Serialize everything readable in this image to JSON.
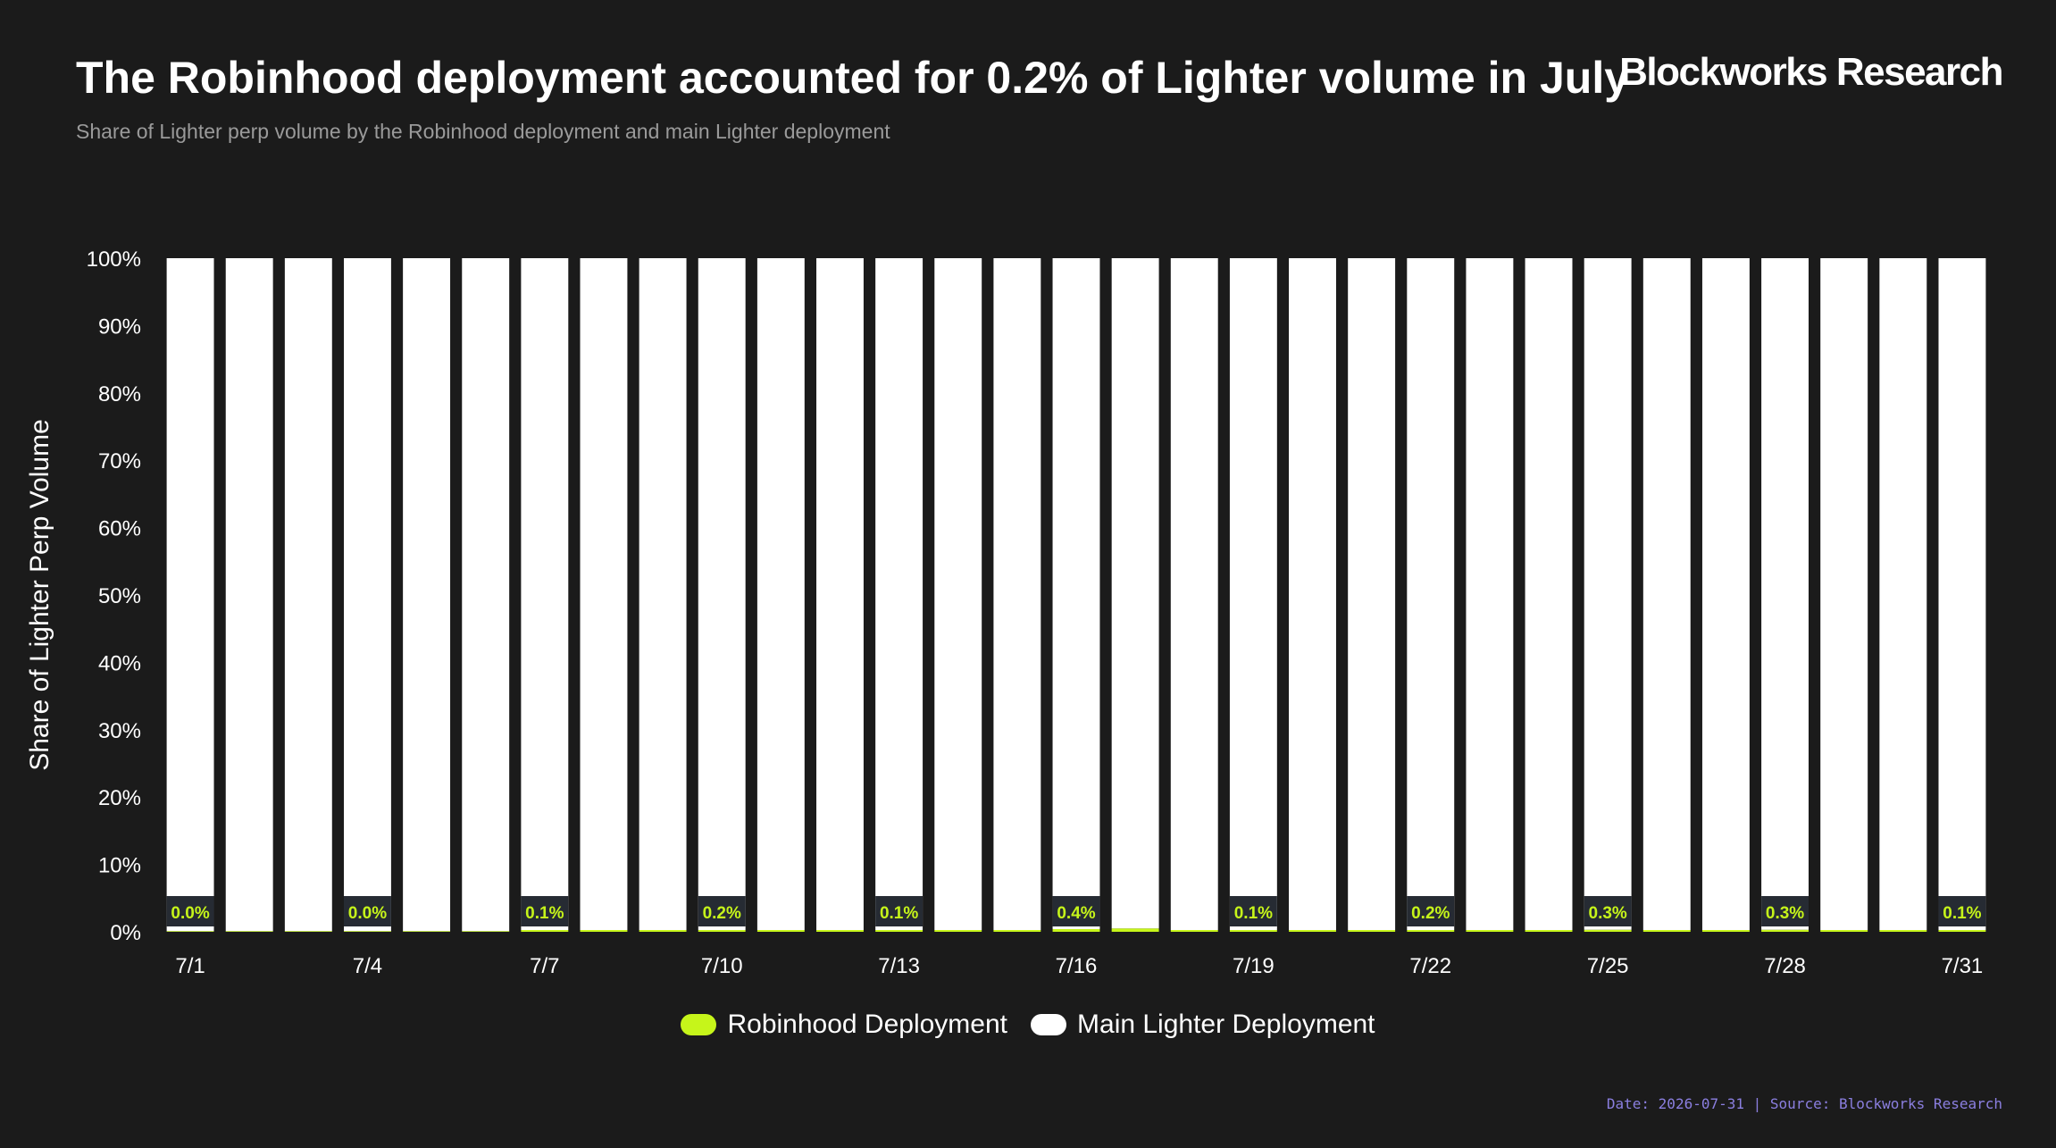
{
  "header": {
    "title": "The Robinhood deployment accounted for 0.2% of Lighter volume in July",
    "subtitle": "Share of Lighter perp volume by the Robinhood deployment and main Lighter deployment",
    "brand": "Blockworks Research"
  },
  "footer": {
    "date_label": "Date: 2026-07-31",
    "separator": " | ",
    "source_label": "Source: Blockworks Research"
  },
  "colors": {
    "background": "#1b1b1b",
    "robinhood": "#c6f51a",
    "main": "#ffffff",
    "label_box": "#262b33",
    "axis_text": "#ffffff",
    "footer": "#8b7fe0"
  },
  "legend": {
    "items": [
      {
        "label": "Robinhood Deployment",
        "color": "#c6f51a"
      },
      {
        "label": "Main Lighter Deployment",
        "color": "#ffffff"
      }
    ]
  },
  "chart_data": {
    "type": "bar",
    "stacked": true,
    "ylabel": "Share of Lighter Perp Volume",
    "ylim": [
      0,
      100
    ],
    "yticks": [
      "0%",
      "10%",
      "20%",
      "30%",
      "40%",
      "50%",
      "60%",
      "70%",
      "80%",
      "90%",
      "100%"
    ],
    "categories": [
      "7/1",
      "7/2",
      "7/3",
      "7/4",
      "7/5",
      "7/6",
      "7/7",
      "7/8",
      "7/9",
      "7/10",
      "7/11",
      "7/12",
      "7/13",
      "7/14",
      "7/15",
      "7/16",
      "7/17",
      "7/18",
      "7/19",
      "7/20",
      "7/21",
      "7/22",
      "7/23",
      "7/24",
      "7/25",
      "7/26",
      "7/27",
      "7/28",
      "7/29",
      "7/30",
      "7/31"
    ],
    "xtick_labels": [
      "7/1",
      "7/4",
      "7/7",
      "7/10",
      "7/13",
      "7/16",
      "7/19",
      "7/22",
      "7/25",
      "7/28",
      "7/31"
    ],
    "series": [
      {
        "name": "Robinhood Deployment",
        "color": "#c6f51a",
        "values": [
          0.0,
          0.0,
          0.0,
          0.0,
          0.0,
          0.0,
          0.1,
          0.2,
          0.1,
          0.2,
          0.1,
          0.1,
          0.1,
          0.1,
          0.2,
          0.4,
          0.5,
          0.1,
          0.1,
          0.1,
          0.1,
          0.2,
          0.2,
          0.2,
          0.3,
          0.1,
          0.1,
          0.3,
          0.1,
          0.1,
          0.1
        ]
      },
      {
        "name": "Main Lighter Deployment",
        "color": "#ffffff",
        "values": [
          100.0,
          100.0,
          100.0,
          100.0,
          100.0,
          100.0,
          99.9,
          99.8,
          99.9,
          99.8,
          99.9,
          99.9,
          99.9,
          99.9,
          99.8,
          99.6,
          99.5,
          99.9,
          99.9,
          99.9,
          99.9,
          99.8,
          99.8,
          99.8,
          99.7,
          99.9,
          99.9,
          99.7,
          99.9,
          99.9,
          99.9
        ]
      }
    ],
    "data_labels": [
      {
        "category": "7/1",
        "text": "0.0%"
      },
      {
        "category": "7/4",
        "text": "0.0%"
      },
      {
        "category": "7/7",
        "text": "0.1%"
      },
      {
        "category": "7/10",
        "text": "0.2%"
      },
      {
        "category": "7/13",
        "text": "0.1%"
      },
      {
        "category": "7/16",
        "text": "0.4%"
      },
      {
        "category": "7/19",
        "text": "0.1%"
      },
      {
        "category": "7/22",
        "text": "0.2%"
      },
      {
        "category": "7/25",
        "text": "0.3%"
      },
      {
        "category": "7/28",
        "text": "0.3%"
      },
      {
        "category": "7/31",
        "text": "0.1%"
      }
    ],
    "grid": false,
    "legend_position": "bottom-center"
  }
}
